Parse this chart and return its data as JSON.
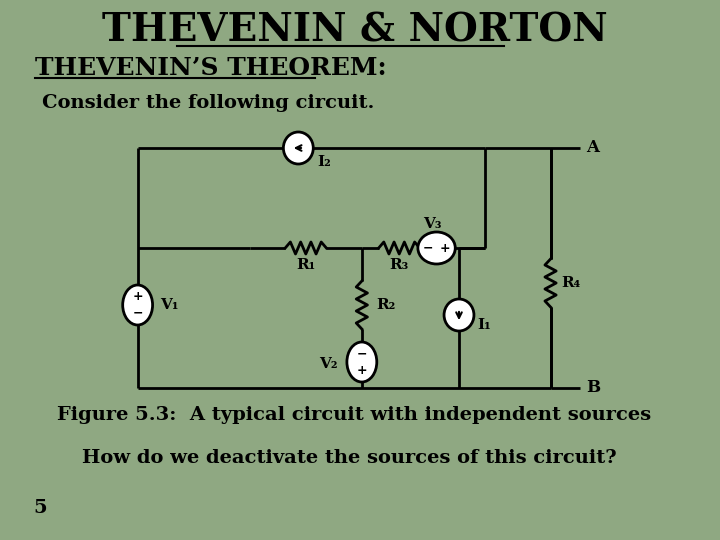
{
  "background_color": "#8fa882",
  "title": "THEVENIN & NORTON",
  "title_fontsize": 28,
  "title_underline": true,
  "subtitle": "THEVENIN’S THEOREM:",
  "subtitle_fontsize": 18,
  "subtitle_underline": true,
  "consider_text": "Consider the following circuit.",
  "consider_fontsize": 14,
  "figure_caption": "Figure 5.3:  A typical circuit with independent sources",
  "caption_fontsize": 14,
  "question_text": "How do we deactivate the sources of this circuit?",
  "question_fontsize": 14,
  "page_number": "5",
  "page_fontsize": 14
}
